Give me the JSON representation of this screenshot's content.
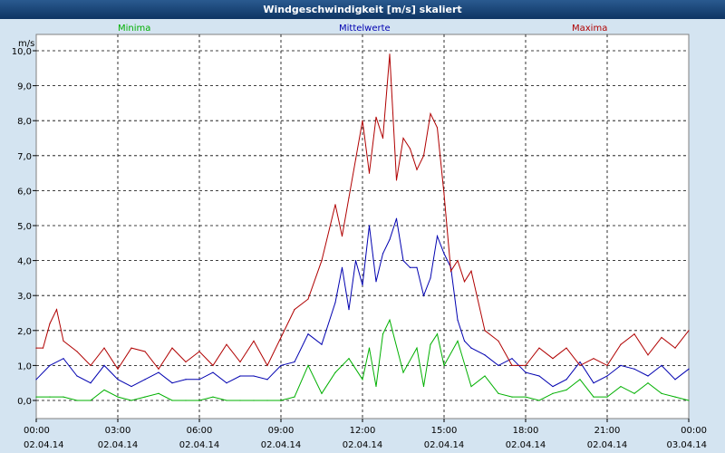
{
  "window": {
    "title": "Windgeschwindigkeit [m/s] skaliert"
  },
  "colors": {
    "minima": "#00b000",
    "mean": "#0000b0",
    "maxima": "#b00000",
    "background": "#d4e4f1"
  },
  "chart_data": {
    "type": "line",
    "title": "Windgeschwindigkeit [m/s] skaliert",
    "ylabel": "m/s",
    "xlabel": "",
    "ylim": [
      -0.5,
      10.4
    ],
    "xlim": [
      0,
      24
    ],
    "grid": true,
    "legend_position": "top",
    "y_ticks": [
      "0,0",
      "1,0",
      "2,0",
      "3,0",
      "4,0",
      "5,0",
      "6,0",
      "7,0",
      "8,0",
      "9,0",
      "10,0"
    ],
    "x_ticks": [
      {
        "time": "00:00",
        "date": "02.04.14"
      },
      {
        "time": "03:00",
        "date": "02.04.14"
      },
      {
        "time": "06:00",
        "date": "02.04.14"
      },
      {
        "time": "09:00",
        "date": "02.04.14"
      },
      {
        "time": "12:00",
        "date": "02.04.14"
      },
      {
        "time": "15:00",
        "date": "02.04.14"
      },
      {
        "time": "18:00",
        "date": "02.04.14"
      },
      {
        "time": "21:00",
        "date": "02.04.14"
      },
      {
        "time": "00:00",
        "date": "03.04.14"
      }
    ],
    "series": [
      {
        "name": "Minima",
        "x": [
          0,
          0.5,
          1,
          1.5,
          2,
          2.5,
          3,
          3.5,
          4,
          4.5,
          5,
          5.5,
          6,
          6.5,
          7,
          7.5,
          8,
          8.5,
          9,
          9.5,
          10,
          10.5,
          11,
          11.5,
          12,
          12.25,
          12.5,
          12.75,
          13,
          13.5,
          14,
          14.25,
          14.5,
          14.75,
          15,
          15.5,
          16,
          16.5,
          17,
          17.5,
          18,
          18.5,
          19,
          19.5,
          20,
          20.5,
          21,
          21.5,
          22,
          22.5,
          23,
          23.5,
          24
        ],
        "values": [
          0.1,
          0.1,
          0.1,
          0,
          0,
          0.3,
          0.1,
          0,
          0.1,
          0.2,
          0,
          0,
          0,
          0.1,
          0,
          0,
          0,
          0,
          0,
          0.1,
          1.0,
          0.2,
          0.8,
          1.2,
          0.6,
          1.5,
          0.4,
          1.9,
          2.3,
          0.8,
          1.5,
          0.4,
          1.6,
          1.9,
          1.0,
          1.7,
          0.4,
          0.7,
          0.2,
          0.1,
          0.1,
          0,
          0.2,
          0.3,
          0.6,
          0.1,
          0.1,
          0.4,
          0.2,
          0.5,
          0.2,
          0.1,
          0
        ]
      },
      {
        "name": "Mittelwerte",
        "x": [
          0,
          0.5,
          1,
          1.5,
          2,
          2.5,
          3,
          3.5,
          4,
          4.5,
          5,
          5.5,
          6,
          6.5,
          7,
          7.5,
          8,
          8.5,
          9,
          9.5,
          10,
          10.5,
          11,
          11.25,
          11.5,
          11.75,
          12,
          12.25,
          12.5,
          12.75,
          13,
          13.25,
          13.5,
          13.75,
          14,
          14.25,
          14.5,
          14.75,
          15,
          15.25,
          15.5,
          15.75,
          16,
          16.5,
          17,
          17.5,
          18,
          18.5,
          19,
          19.5,
          20,
          20.5,
          21,
          21.5,
          22,
          22.5,
          23,
          23.5,
          24
        ],
        "values": [
          0.6,
          1.0,
          1.2,
          0.7,
          0.5,
          1.0,
          0.6,
          0.4,
          0.6,
          0.8,
          0.5,
          0.6,
          0.6,
          0.8,
          0.5,
          0.7,
          0.7,
          0.6,
          1.0,
          1.1,
          1.9,
          1.6,
          2.8,
          3.8,
          2.6,
          4.0,
          3.3,
          5.0,
          3.4,
          4.2,
          4.6,
          5.2,
          4.0,
          3.8,
          3.8,
          3.0,
          3.5,
          4.7,
          4.2,
          3.8,
          2.3,
          1.7,
          1.5,
          1.3,
          1.0,
          1.2,
          0.8,
          0.7,
          0.4,
          0.6,
          1.1,
          0.5,
          0.7,
          1.0,
          0.9,
          0.7,
          1.0,
          0.6,
          0.9
        ]
      },
      {
        "name": "Maxima",
        "x": [
          0,
          0.25,
          0.5,
          0.75,
          1,
          1.5,
          2,
          2.5,
          3,
          3.5,
          4,
          4.5,
          5,
          5.5,
          6,
          6.5,
          7,
          7.5,
          8,
          8.5,
          9,
          9.5,
          10,
          10.5,
          11,
          11.25,
          11.5,
          11.75,
          12,
          12.25,
          12.5,
          12.75,
          13,
          13.25,
          13.5,
          13.75,
          14,
          14.25,
          14.5,
          14.75,
          15,
          15.25,
          15.5,
          15.75,
          16,
          16.5,
          17,
          17.5,
          18,
          18.5,
          19,
          19.5,
          20,
          20.5,
          21,
          21.5,
          22,
          22.5,
          23,
          23.5,
          24
        ],
        "values": [
          1.5,
          1.5,
          2.2,
          2.6,
          1.7,
          1.4,
          1.0,
          1.5,
          0.9,
          1.5,
          1.4,
          0.9,
          1.5,
          1.1,
          1.4,
          1.0,
          1.6,
          1.1,
          1.7,
          1.0,
          1.8,
          2.6,
          2.9,
          4.0,
          5.6,
          4.7,
          5.8,
          6.9,
          8.0,
          6.5,
          8.1,
          7.5,
          9.9,
          6.3,
          7.5,
          7.2,
          6.6,
          7.0,
          8.2,
          7.8,
          5.9,
          3.7,
          4.0,
          3.4,
          3.7,
          2.0,
          1.7,
          1.0,
          1.0,
          1.5,
          1.2,
          1.5,
          1.0,
          1.2,
          1.0,
          1.6,
          1.9,
          1.3,
          1.8,
          1.5,
          2.0
        ]
      }
    ]
  }
}
